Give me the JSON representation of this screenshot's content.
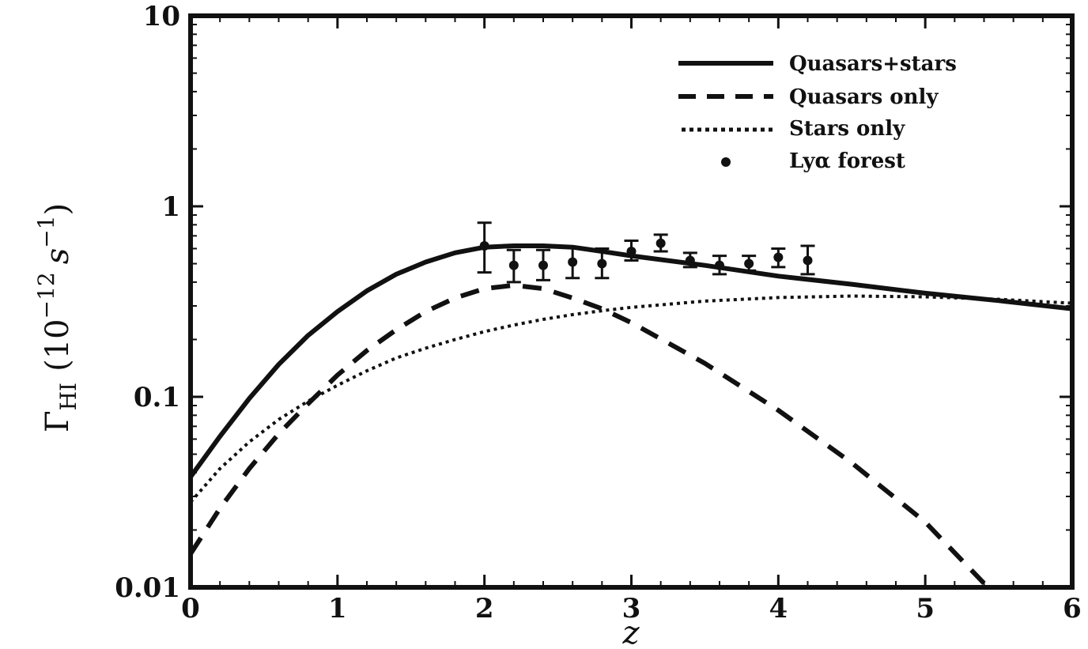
{
  "chart_data": {
    "type": "line",
    "xlabel": "z",
    "ylabel": "Γ",
    "ylabel_sub": "HI",
    "ylabel_unit_open": "(10",
    "ylabel_unit_exp": "−12",
    "ylabel_unit_s": "s",
    "ylabel_unit_exp2": "−1",
    "ylabel_unit_close": ")",
    "xlim": [
      0,
      6
    ],
    "ylim": [
      0.01,
      10
    ],
    "yscale": "log",
    "x_ticks": [
      "0",
      "1",
      "2",
      "3",
      "4",
      "5",
      "6"
    ],
    "y_ticks": [
      "0.01",
      "0.1",
      "1",
      "10"
    ],
    "legend_position": "top-right",
    "series": [
      {
        "name": "Quasars+stars",
        "style": "solid",
        "x": [
          0,
          0.2,
          0.4,
          0.6,
          0.8,
          1.0,
          1.2,
          1.4,
          1.6,
          1.8,
          2.0,
          2.2,
          2.4,
          2.6,
          2.8,
          3.0,
          3.5,
          4.0,
          4.5,
          5.0,
          5.5,
          6.0
        ],
        "y": [
          0.038,
          0.062,
          0.098,
          0.148,
          0.21,
          0.28,
          0.36,
          0.44,
          0.51,
          0.57,
          0.61,
          0.62,
          0.62,
          0.61,
          0.58,
          0.55,
          0.49,
          0.43,
          0.39,
          0.35,
          0.32,
          0.29
        ]
      },
      {
        "name": "Quasars only",
        "style": "dashed",
        "x": [
          0,
          0.2,
          0.4,
          0.6,
          0.8,
          1.0,
          1.2,
          1.4,
          1.6,
          1.8,
          2.0,
          2.2,
          2.4,
          2.6,
          2.8,
          3.0,
          3.5,
          4.0,
          4.5,
          5.0,
          5.4
        ],
        "y": [
          0.015,
          0.026,
          0.042,
          0.064,
          0.092,
          0.13,
          0.175,
          0.225,
          0.28,
          0.33,
          0.37,
          0.385,
          0.37,
          0.33,
          0.29,
          0.245,
          0.15,
          0.085,
          0.045,
          0.022,
          0.0105
        ]
      },
      {
        "name": "Stars only",
        "style": "dotted",
        "x": [
          0,
          0.2,
          0.4,
          0.6,
          0.8,
          1.0,
          1.2,
          1.4,
          1.6,
          1.8,
          2.0,
          2.2,
          2.4,
          2.6,
          2.8,
          3.0,
          3.5,
          4.0,
          4.5,
          5.0,
          5.5,
          6.0
        ],
        "y": [
          0.028,
          0.042,
          0.058,
          0.076,
          0.095,
          0.115,
          0.137,
          0.16,
          0.18,
          0.2,
          0.22,
          0.238,
          0.255,
          0.27,
          0.283,
          0.295,
          0.318,
          0.332,
          0.338,
          0.335,
          0.325,
          0.31
        ]
      }
    ],
    "points": {
      "name": "Lyα forest",
      "x": [
        2.0,
        2.2,
        2.4,
        2.6,
        2.8,
        3.0,
        3.2,
        3.4,
        3.6,
        3.8,
        4.0,
        4.2
      ],
      "y": [
        0.62,
        0.49,
        0.49,
        0.51,
        0.5,
        0.58,
        0.64,
        0.52,
        0.49,
        0.5,
        0.54,
        0.52
      ],
      "y_low": [
        0.45,
        0.4,
        0.41,
        0.42,
        0.42,
        0.52,
        0.58,
        0.48,
        0.44,
        0.46,
        0.48,
        0.44
      ],
      "y_high": [
        0.82,
        0.59,
        0.59,
        0.61,
        0.6,
        0.66,
        0.71,
        0.57,
        0.55,
        0.55,
        0.6,
        0.62
      ]
    }
  }
}
